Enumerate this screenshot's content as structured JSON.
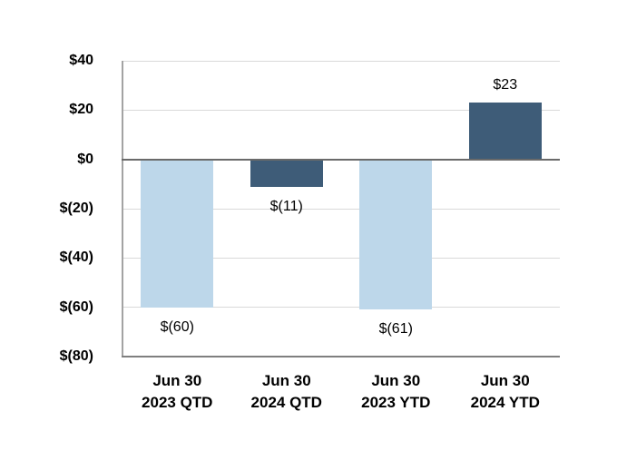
{
  "chart_data": {
    "type": "bar",
    "title": "",
    "categories": [
      "Jun 30 2023 QTD",
      "Jun 30 2024 QTD",
      "Jun 30 2023 YTD",
      "Jun 30 2024 YTD"
    ],
    "category_lines": [
      [
        "Jun 30",
        "2023 QTD"
      ],
      [
        "Jun 30",
        "2024 QTD"
      ],
      [
        "Jun 30",
        "2023 YTD"
      ],
      [
        "Jun 30",
        "2024 YTD"
      ]
    ],
    "values": [
      -60,
      -11,
      -61,
      23
    ],
    "data_labels": [
      "$(60)",
      "$(11)",
      "$(61)",
      "$23"
    ],
    "bar_colors": [
      "#BDD7EA",
      "#3E5C78",
      "#BDD7EA",
      "#3E5C78"
    ],
    "ylim": [
      -80,
      40
    ],
    "ytick_values": [
      40,
      20,
      0,
      -20,
      -40,
      -60,
      -80
    ],
    "ytick_labels": [
      "$40",
      "$20",
      "$0",
      "$(20)",
      "$(40)",
      "$(60)",
      "$(80)"
    ],
    "grid": true,
    "legend": "none",
    "xlabel": "",
    "ylabel": ""
  },
  "colors": {
    "background": "#FFFFFF",
    "bar_light_blue": "#BDD7EA",
    "bar_dark_blue": "#3E5C78",
    "gridline": "#D9D9D9",
    "zero_line": "#6A6A6A",
    "axis_bottom_line": "#7F7F7F",
    "axis_left_line": "#A3A3A3",
    "text": "#000000"
  }
}
